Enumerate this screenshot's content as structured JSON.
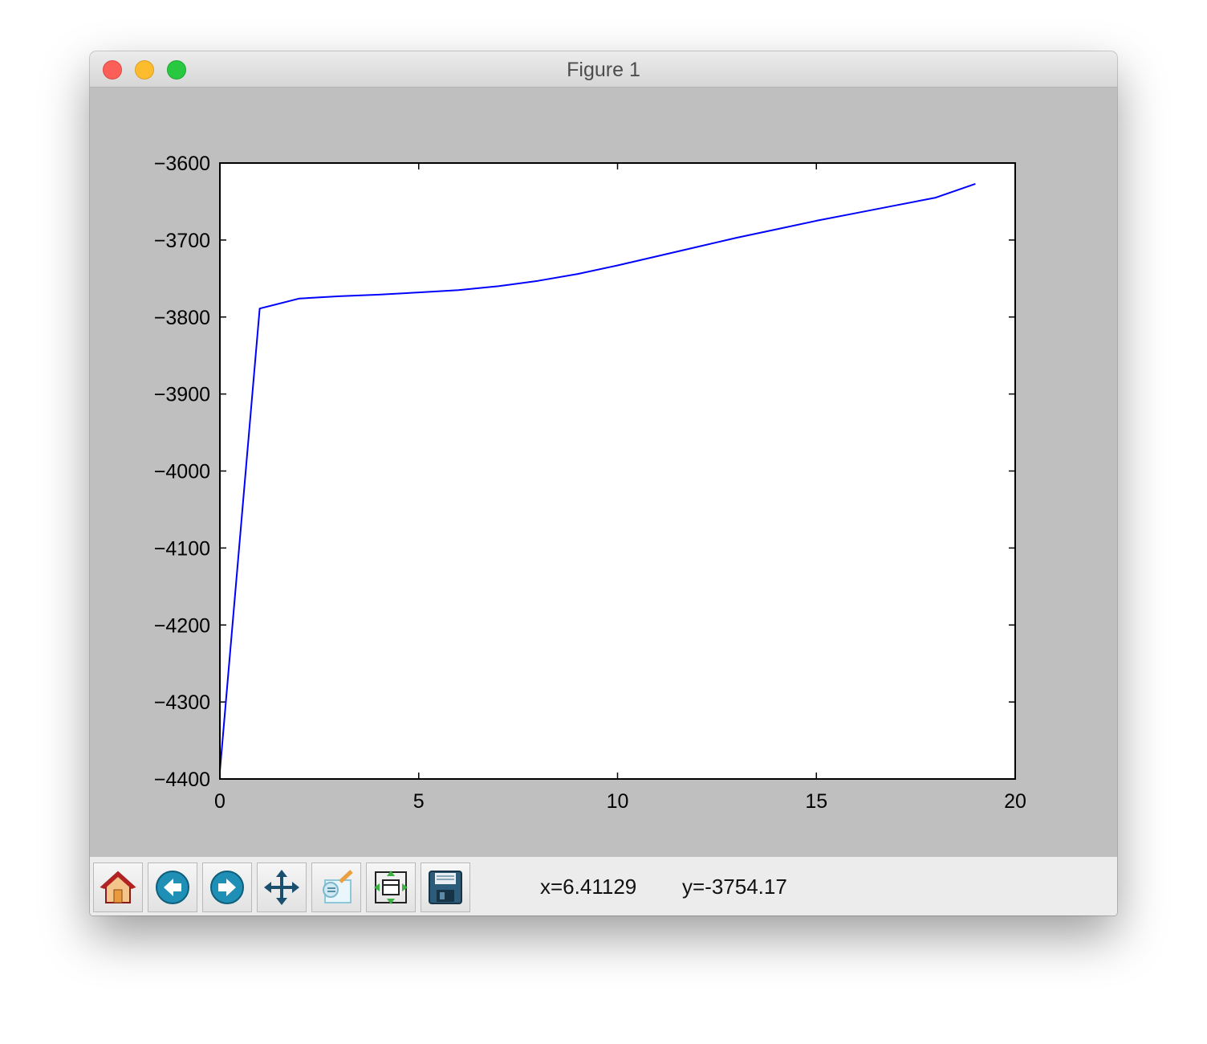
{
  "window": {
    "title": "Figure 1"
  },
  "toolbar": {
    "buttons": [
      {
        "name": "home-button",
        "icon": "home-icon"
      },
      {
        "name": "back-button",
        "icon": "back-arrow-icon"
      },
      {
        "name": "forward-button",
        "icon": "forward-arrow-icon"
      },
      {
        "name": "pan-button",
        "icon": "move-arrows-icon"
      },
      {
        "name": "zoom-button",
        "icon": "zoom-rect-icon"
      },
      {
        "name": "subplots-button",
        "icon": "subplots-config-icon"
      },
      {
        "name": "save-button",
        "icon": "floppy-disk-icon"
      }
    ],
    "x_readout": "x=6.41129",
    "y_readout": "y=-3754.17"
  },
  "chart_data": {
    "type": "line",
    "title": "",
    "xlabel": "",
    "ylabel": "",
    "xlim": [
      0,
      20
    ],
    "ylim": [
      -4400,
      -3600
    ],
    "xticks": [
      0,
      5,
      10,
      15,
      20
    ],
    "xtick_labels": [
      "0",
      "5",
      "10",
      "15",
      "20"
    ],
    "yticks": [
      -3600,
      -3700,
      -3800,
      -3900,
      -4000,
      -4100,
      -4200,
      -4300,
      -4400
    ],
    "ytick_labels": [
      "−3600",
      "−3700",
      "−3800",
      "−3900",
      "−4000",
      "−4100",
      "−4200",
      "−4300",
      "−4400"
    ],
    "grid": false,
    "series": [
      {
        "color": "#0000ff",
        "x": [
          0,
          1,
          2,
          3,
          4,
          5,
          6,
          7,
          8,
          9,
          10,
          11,
          12,
          13,
          14,
          15,
          16,
          17,
          18,
          19
        ],
        "values": [
          -4390,
          -3789,
          -3776,
          -3773,
          -3771,
          -3768,
          -3765,
          -3760,
          -3753,
          -3744,
          -3733,
          -3721,
          -3709,
          -3697,
          -3686,
          -3675,
          -3665,
          -3655,
          -3645,
          -3627
        ]
      }
    ]
  }
}
